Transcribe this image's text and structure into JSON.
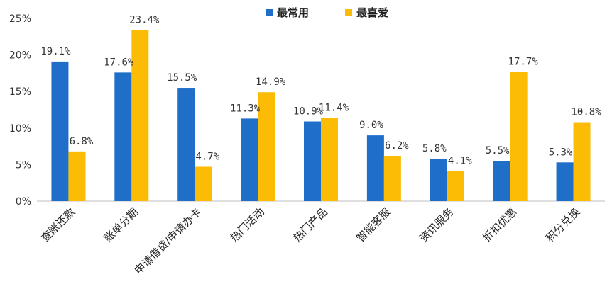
{
  "chart_data": {
    "type": "bar",
    "categories": [
      "查账还款",
      "账单分期",
      "申请借贷/申请办卡",
      "热门活动",
      "热门产品",
      "智能客服",
      "资讯服务",
      "折扣优惠",
      "积分兑换"
    ],
    "series": [
      {
        "name": "最常用",
        "color": "#1f6fc9",
        "values": [
          19.1,
          17.6,
          15.5,
          11.3,
          10.9,
          9.0,
          5.8,
          5.5,
          5.3
        ],
        "labels": [
          "19.1%",
          "17.6%",
          "15.5%",
          "11.3%",
          "10.9%",
          "9.0%",
          "5.8%",
          "5.5%",
          "5.3%"
        ]
      },
      {
        "name": "最喜爱",
        "color": "#fcbb04",
        "values": [
          6.8,
          23.4,
          4.7,
          14.9,
          11.4,
          6.2,
          4.1,
          17.7,
          10.8
        ],
        "labels": [
          "6.8%",
          "23.4%",
          "4.7%",
          "14.9%",
          "11.4%",
          "6.2%",
          "4.1%",
          "17.7%",
          "10.8%"
        ]
      }
    ],
    "yticks": [
      "0%",
      "5%",
      "10%",
      "15%",
      "20%",
      "25%"
    ],
    "ylim": [
      0,
      25
    ],
    "grid": false,
    "legend_position": "top-center",
    "title": "",
    "xlabel": "",
    "ylabel": ""
  }
}
